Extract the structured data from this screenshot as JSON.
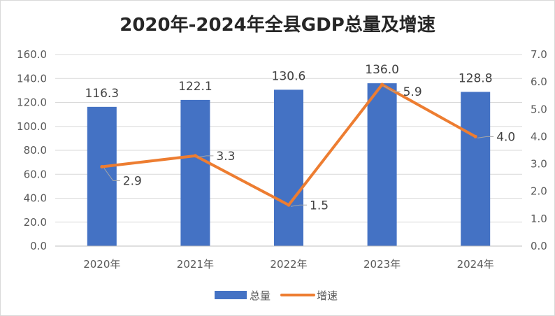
{
  "chart_data": {
    "type": "bar+line",
    "title": "2020年-2024年全县GDP总量及增速",
    "categories": [
      "2020年",
      "2021年",
      "2022年",
      "2023年",
      "2024年"
    ],
    "series": [
      {
        "name": "总量",
        "type": "bar",
        "axis": "left",
        "color": "#4472C4",
        "values": [
          116.3,
          122.1,
          130.6,
          136.0,
          128.8
        ]
      },
      {
        "name": "增速",
        "type": "line",
        "axis": "right",
        "color": "#ED7D31",
        "values": [
          2.9,
          3.3,
          1.5,
          5.9,
          4.0
        ]
      }
    ],
    "y_left": {
      "min": 0,
      "max": 160,
      "step": 20,
      "ticks": [
        "0.0",
        "20.0",
        "40.0",
        "60.0",
        "80.0",
        "100.0",
        "120.0",
        "140.0",
        "160.0"
      ]
    },
    "y_right": {
      "min": 0,
      "max": 7,
      "step": 1,
      "ticks": [
        "0.0",
        "1.0",
        "2.0",
        "3.0",
        "4.0",
        "5.0",
        "6.0",
        "7.0"
      ]
    },
    "bar_labels": [
      "116.3",
      "122.1",
      "130.6",
      "136.0",
      "128.8"
    ],
    "line_labels": [
      "2.9",
      "3.3",
      "1.5",
      "5.9",
      "4.0"
    ],
    "grid": true,
    "legend_position": "bottom"
  }
}
